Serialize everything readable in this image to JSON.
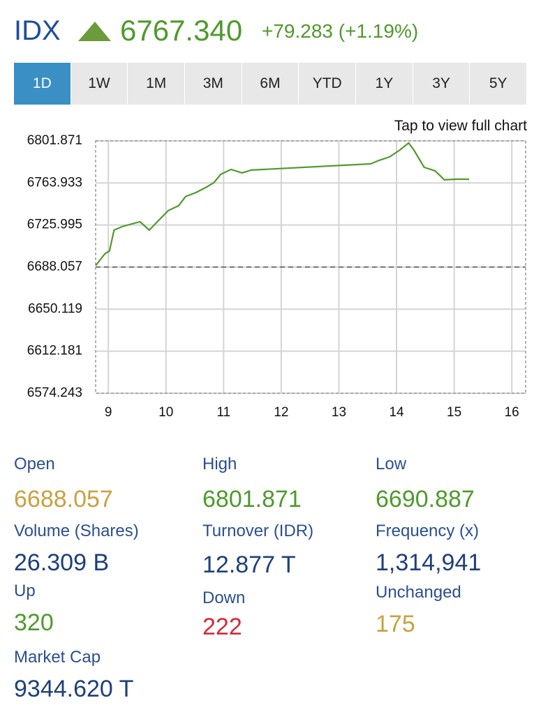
{
  "header": {
    "symbol": "IDX",
    "price": "6767.340",
    "change": "+79.283 (+1.19%)"
  },
  "tabs": [
    "1D",
    "1W",
    "1M",
    "3M",
    "6M",
    "YTD",
    "1Y",
    "3Y",
    "5Y"
  ],
  "selected_tab": 0,
  "chart_link": "Tap to view full chart",
  "chart_data": {
    "type": "line",
    "x": [
      8.78,
      8.94,
      9.02,
      9.1,
      9.24,
      9.37,
      9.55,
      9.71,
      9.85,
      10.04,
      10.22,
      10.34,
      10.52,
      10.71,
      10.83,
      10.95,
      11.13,
      11.32,
      11.48,
      13.55,
      13.7,
      13.88,
      14.06,
      14.21,
      14.3,
      14.48,
      14.67,
      14.83,
      15.04,
      15.26
    ],
    "series": [
      {
        "color": "#4f9a2c",
        "values": [
          6689.3,
          6700.0,
          6702.5,
          6721.4,
          6724.5,
          6726.4,
          6728.9,
          6721.4,
          6728.9,
          6739.0,
          6743.4,
          6751.6,
          6755.3,
          6760.4,
          6764.1,
          6771.7,
          6776.1,
          6773.0,
          6775.5,
          6781.1,
          6784.3,
          6787.4,
          6793.7,
          6800.0,
          6793.7,
          6778.0,
          6774.8,
          6766.7,
          6767.3,
          6767.3
        ]
      }
    ],
    "reference": 6688.057,
    "xlim": [
      8.78,
      16.24
    ],
    "xticks": [
      9,
      10,
      11,
      12,
      13,
      14,
      15,
      16
    ],
    "ylim": [
      6574.243,
      6801.871
    ],
    "yticks": [
      6801.871,
      6763.933,
      6725.995,
      6688.057,
      6650.119,
      6612.181,
      6574.243
    ],
    "grid": true
  },
  "stats": [
    {
      "label": "Open",
      "value": "6688.057",
      "color": "#c9a13f"
    },
    {
      "label": "High",
      "value": "6801.871",
      "color": "#4f9a2c"
    },
    {
      "label": "Low",
      "value": "6690.887",
      "color": "#4f9a2c"
    },
    {
      "label": "Volume (Shares)",
      "value": "26.309 B",
      "color": "#1e3f7a"
    },
    {
      "label": "Turnover (IDR)",
      "value": "12.877 T",
      "color": "#1e3f7a"
    },
    {
      "label": "Frequency (x)",
      "value": "1,314,941",
      "color": "#1e3f7a"
    },
    {
      "label": "Up",
      "value": "320",
      "color": "#4f9a2c"
    },
    {
      "label": "Down",
      "value": "222",
      "color": "#d22a3a"
    },
    {
      "label": "Unchanged",
      "value": "175",
      "color": "#c9a13f"
    },
    {
      "label": "Market Cap",
      "value": "9344.620 T",
      "color": "#1e3f7a"
    }
  ]
}
